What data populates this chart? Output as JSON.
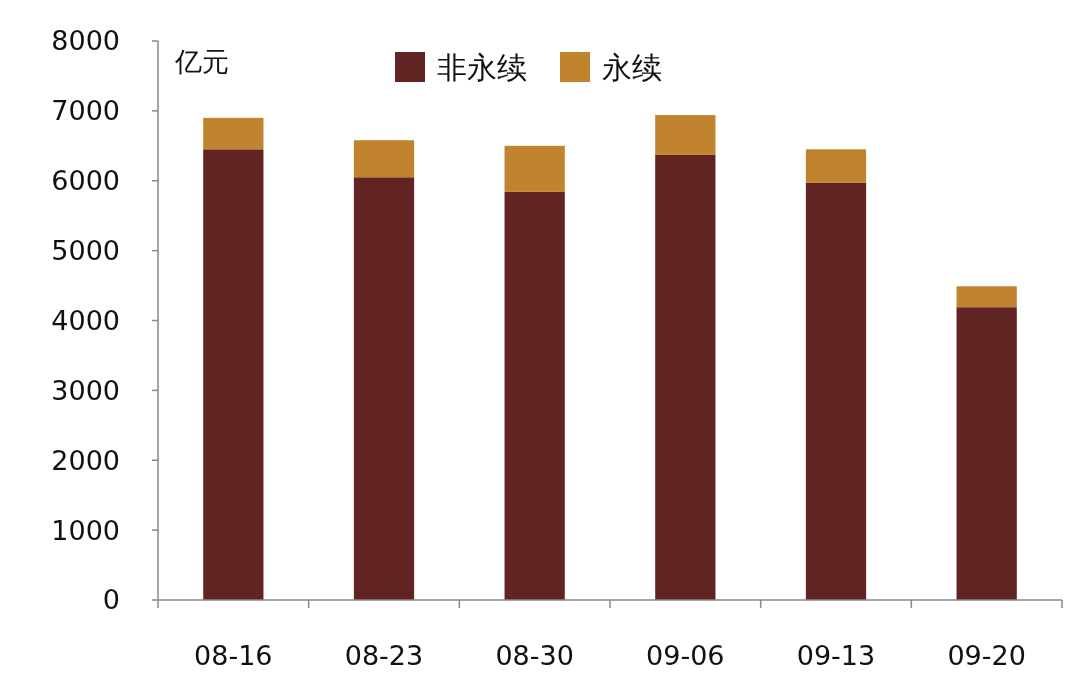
{
  "chart_data": {
    "type": "bar",
    "stacked": true,
    "ylabel": "亿元",
    "categories": [
      "08-16",
      "08-23",
      "08-30",
      "09-06",
      "09-13",
      "09-20"
    ],
    "series": [
      {
        "name": "非永续",
        "color": "#622323",
        "values": [
          6450,
          6050,
          5840,
          6370,
          5970,
          4190
        ]
      },
      {
        "name": "永续",
        "color": "#c0842f",
        "values": [
          450,
          530,
          660,
          570,
          480,
          300
        ]
      }
    ],
    "ylim": [
      0,
      8000
    ],
    "yticks": [
      0,
      1000,
      2000,
      3000,
      4000,
      5000,
      6000,
      7000,
      8000
    ],
    "grid": false,
    "legend": "top"
  }
}
